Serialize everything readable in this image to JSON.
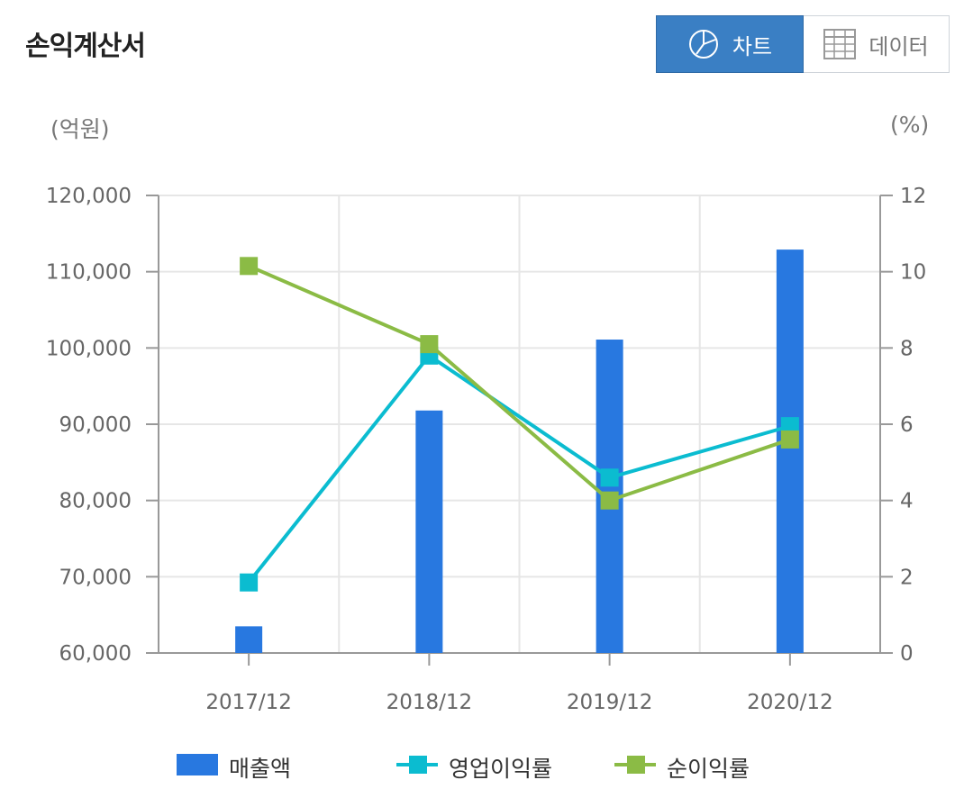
{
  "header": {
    "title": "손익계산서"
  },
  "toggle": {
    "chart_label": "차트",
    "data_label": "데이터"
  },
  "colors": {
    "revenue": "#2878e0",
    "operating_margin": "#0bbcd0",
    "net_margin": "#8bbb45",
    "active_button": "#3a7fc4"
  },
  "icons": {
    "chart_button": "pie-chart-icon",
    "data_button": "table-grid-icon"
  },
  "chart_data": {
    "type": "bar",
    "categories": [
      "2017/12",
      "2018/12",
      "2019/12",
      "2020/12"
    ],
    "series": [
      {
        "name": "매출액",
        "type": "bar",
        "axis": "left",
        "values": [
          63500,
          91800,
          101100,
          112900
        ]
      },
      {
        "name": "영업이익률",
        "type": "line",
        "axis": "right",
        "values": [
          1.85,
          7.8,
          4.6,
          5.95
        ]
      },
      {
        "name": "순이익률",
        "type": "line",
        "axis": "right",
        "values": [
          10.15,
          8.1,
          4.0,
          5.6
        ]
      }
    ],
    "left_axis": {
      "unit": "(억원)",
      "min": 60000,
      "max": 120000,
      "ticks": [
        "60,000",
        "70,000",
        "80,000",
        "90,000",
        "100,000",
        "110,000",
        "120,000"
      ]
    },
    "right_axis": {
      "unit": "(%)",
      "min": 0,
      "max": 12,
      "ticks": [
        "0",
        "2",
        "4",
        "6",
        "8",
        "10",
        "12"
      ]
    },
    "grid": true,
    "legend": "bottom"
  }
}
